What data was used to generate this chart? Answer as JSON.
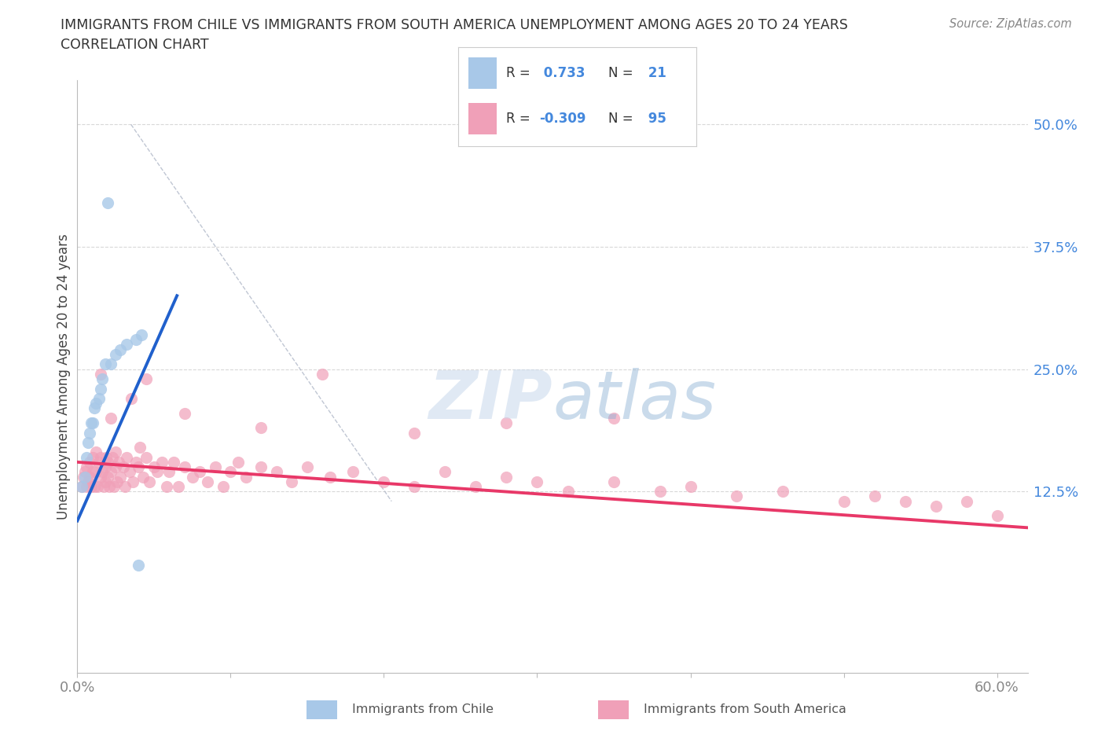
{
  "title_line1": "IMMIGRANTS FROM CHILE VS IMMIGRANTS FROM SOUTH AMERICA UNEMPLOYMENT AMONG AGES 20 TO 24 YEARS",
  "title_line2": "CORRELATION CHART",
  "source": "Source: ZipAtlas.com",
  "ylabel": "Unemployment Among Ages 20 to 24 years",
  "xlim": [
    0.0,
    0.62
  ],
  "ylim": [
    -0.06,
    0.545
  ],
  "ytick_positions": [
    0.125,
    0.25,
    0.375,
    0.5
  ],
  "ytick_labels": [
    "12.5%",
    "25.0%",
    "37.5%",
    "50.0%"
  ],
  "xtick_positions": [
    0.0,
    0.1,
    0.2,
    0.3,
    0.4,
    0.5,
    0.6
  ],
  "xtick_labels_show": [
    "0.0%",
    "60.0%"
  ],
  "R_chile": 0.733,
  "N_chile": 21,
  "R_south_america": -0.309,
  "N_south_america": 95,
  "chile_color": "#a8c8e8",
  "south_america_color": "#f0a0b8",
  "chile_line_color": "#2060cc",
  "south_america_line_color": "#e83868",
  "ref_line_color": "#b0b8c8",
  "watermark_color": "#d0daea",
  "background_color": "#ffffff",
  "grid_color": "#d8d8d8",
  "title_color": "#333333",
  "label_color": "#4488dd",
  "legend_border_color": "#cccccc",
  "bottom_legend_color": "#555555",
  "source_color": "#888888",
  "ylabel_color": "#444444",
  "xtick_color": "#888888",
  "chile_x": [
    0.003,
    0.005,
    0.006,
    0.007,
    0.008,
    0.009,
    0.01,
    0.011,
    0.012,
    0.014,
    0.015,
    0.016,
    0.018,
    0.02,
    0.022,
    0.025,
    0.028,
    0.032,
    0.038,
    0.042,
    0.04
  ],
  "chile_y": [
    0.13,
    0.14,
    0.16,
    0.175,
    0.185,
    0.195,
    0.195,
    0.21,
    0.215,
    0.22,
    0.23,
    0.24,
    0.255,
    0.42,
    0.255,
    0.265,
    0.27,
    0.275,
    0.28,
    0.285,
    0.05
  ],
  "sa_x": [
    0.003,
    0.004,
    0.005,
    0.006,
    0.006,
    0.007,
    0.008,
    0.008,
    0.009,
    0.01,
    0.01,
    0.011,
    0.012,
    0.012,
    0.013,
    0.014,
    0.015,
    0.015,
    0.016,
    0.017,
    0.018,
    0.018,
    0.019,
    0.02,
    0.02,
    0.021,
    0.022,
    0.023,
    0.024,
    0.025,
    0.025,
    0.026,
    0.027,
    0.028,
    0.03,
    0.031,
    0.032,
    0.034,
    0.036,
    0.038,
    0.04,
    0.041,
    0.043,
    0.045,
    0.047,
    0.05,
    0.052,
    0.055,
    0.058,
    0.06,
    0.063,
    0.066,
    0.07,
    0.075,
    0.08,
    0.085,
    0.09,
    0.095,
    0.1,
    0.105,
    0.11,
    0.12,
    0.13,
    0.14,
    0.15,
    0.165,
    0.18,
    0.2,
    0.22,
    0.24,
    0.26,
    0.28,
    0.3,
    0.32,
    0.35,
    0.38,
    0.4,
    0.43,
    0.46,
    0.5,
    0.52,
    0.54,
    0.56,
    0.58,
    0.6,
    0.015,
    0.022,
    0.035,
    0.045,
    0.07,
    0.12,
    0.16,
    0.22,
    0.28,
    0.35
  ],
  "sa_y": [
    0.13,
    0.14,
    0.145,
    0.13,
    0.15,
    0.135,
    0.14,
    0.155,
    0.13,
    0.145,
    0.16,
    0.13,
    0.145,
    0.165,
    0.13,
    0.155,
    0.14,
    0.16,
    0.145,
    0.13,
    0.15,
    0.135,
    0.16,
    0.14,
    0.155,
    0.13,
    0.145,
    0.16,
    0.13,
    0.15,
    0.165,
    0.135,
    0.155,
    0.14,
    0.15,
    0.13,
    0.16,
    0.145,
    0.135,
    0.155,
    0.15,
    0.17,
    0.14,
    0.16,
    0.135,
    0.15,
    0.145,
    0.155,
    0.13,
    0.145,
    0.155,
    0.13,
    0.15,
    0.14,
    0.145,
    0.135,
    0.15,
    0.13,
    0.145,
    0.155,
    0.14,
    0.15,
    0.145,
    0.135,
    0.15,
    0.14,
    0.145,
    0.135,
    0.13,
    0.145,
    0.13,
    0.14,
    0.135,
    0.125,
    0.135,
    0.125,
    0.13,
    0.12,
    0.125,
    0.115,
    0.12,
    0.115,
    0.11,
    0.115,
    0.1,
    0.245,
    0.2,
    0.22,
    0.24,
    0.205,
    0.19,
    0.245,
    0.185,
    0.195,
    0.2
  ],
  "chile_line_x": [
    0.0,
    0.065
  ],
  "chile_line_y_start": 0.095,
  "chile_line_y_end": 0.325,
  "sa_line_x": [
    0.0,
    0.62
  ],
  "sa_line_y_start": 0.155,
  "sa_line_y_end": 0.088,
  "ref_line_x": [
    0.035,
    0.205
  ],
  "ref_line_y": [
    0.5,
    0.115
  ]
}
